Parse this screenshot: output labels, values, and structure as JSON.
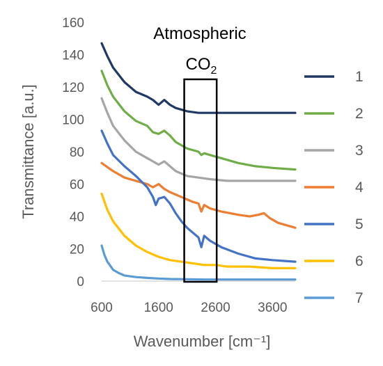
{
  "chart_data": {
    "type": "line",
    "title": "",
    "xlabel": "Wavenumber [cm⁻¹]",
    "ylabel": "Transmittance [a.u.]",
    "xlim": [
      600,
      4000
    ],
    "ylim": [
      0,
      160
    ],
    "xticks": [
      600,
      1600,
      2600,
      3600
    ],
    "yticks": [
      0,
      20,
      40,
      60,
      80,
      100,
      120,
      140,
      160
    ],
    "grid": false,
    "legend_position": "right",
    "annotation": {
      "line1": "Atmospheric",
      "line2_main": "CO",
      "line2_sub": "2",
      "box_x_range": [
        2050,
        2620
      ]
    },
    "series": [
      {
        "name": "1",
        "color": "#1f3864",
        "x": [
          600,
          700,
          800,
          1000,
          1200,
          1400,
          1500,
          1600,
          1700,
          1800,
          1900,
          2100,
          2300,
          2500,
          2800,
          3200,
          3600,
          4000
        ],
        "y": [
          147,
          139,
          132,
          123,
          117,
          114,
          112,
          109,
          112,
          109,
          107,
          105,
          104,
          104,
          104,
          104,
          104,
          104
        ]
      },
      {
        "name": "2",
        "color": "#70ad47",
        "x": [
          600,
          700,
          800,
          1000,
          1200,
          1400,
          1500,
          1600,
          1700,
          1800,
          1900,
          2100,
          2300,
          2350,
          2400,
          2500,
          2700,
          3000,
          3300,
          3600,
          4000
        ],
        "y": [
          130,
          121,
          114,
          105,
          99,
          96,
          92,
          91,
          93,
          90,
          86,
          82,
          80,
          78,
          79,
          78,
          76,
          73,
          71,
          70,
          69
        ]
      },
      {
        "name": "3",
        "color": "#a5a5a5",
        "x": [
          600,
          700,
          800,
          1000,
          1200,
          1400,
          1500,
          1600,
          1700,
          1800,
          1900,
          2100,
          2300,
          2500,
          2800,
          3200,
          3600,
          4000
        ],
        "y": [
          113,
          104,
          96,
          87,
          80,
          76,
          74,
          72,
          74,
          71,
          68,
          65,
          64,
          63,
          62,
          62,
          62,
          62
        ]
      },
      {
        "name": "4",
        "color": "#ed7d31",
        "x": [
          600,
          800,
          1000,
          1200,
          1400,
          1500,
          1600,
          1700,
          1800,
          2000,
          2200,
          2300,
          2350,
          2400,
          2500,
          2700,
          3000,
          3200,
          3350,
          3450,
          3550,
          3700,
          4000
        ],
        "y": [
          73,
          68,
          64,
          62,
          60,
          58,
          60,
          57,
          55,
          52,
          49,
          48,
          43,
          47,
          45,
          43,
          41,
          40,
          41,
          42,
          39,
          36,
          33
        ]
      },
      {
        "name": "5",
        "color": "#4472c4",
        "x": [
          600,
          700,
          800,
          1000,
          1200,
          1400,
          1500,
          1550,
          1600,
          1700,
          1800,
          1900,
          2000,
          2100,
          2200,
          2300,
          2350,
          2400,
          2500,
          2700,
          3000,
          3300,
          3600,
          4000
        ],
        "y": [
          93,
          85,
          78,
          71,
          65,
          58,
          52,
          47,
          51,
          52,
          48,
          42,
          37,
          33,
          30,
          27,
          21,
          28,
          25,
          21,
          17,
          14,
          13,
          12
        ]
      },
      {
        "name": "6",
        "color": "#ffc000",
        "x": [
          600,
          700,
          800,
          1000,
          1200,
          1400,
          1600,
          1800,
          2000,
          2200,
          2400,
          2600,
          2800,
          3200,
          3600,
          4000
        ],
        "y": [
          54,
          44,
          37,
          28,
          22,
          18,
          15,
          13,
          12,
          11,
          10,
          10,
          9,
          9,
          8,
          8
        ]
      },
      {
        "name": "7",
        "color": "#5b9bd5",
        "x": [
          600,
          650,
          700,
          800,
          900,
          1000,
          1200,
          1400,
          1600,
          1800,
          2000,
          2400,
          3000,
          3600,
          4000
        ],
        "y": [
          22,
          16,
          12,
          7,
          5,
          3.5,
          2.5,
          2,
          1.6,
          1.3,
          1.2,
          1,
          1,
          1,
          1
        ]
      }
    ]
  }
}
